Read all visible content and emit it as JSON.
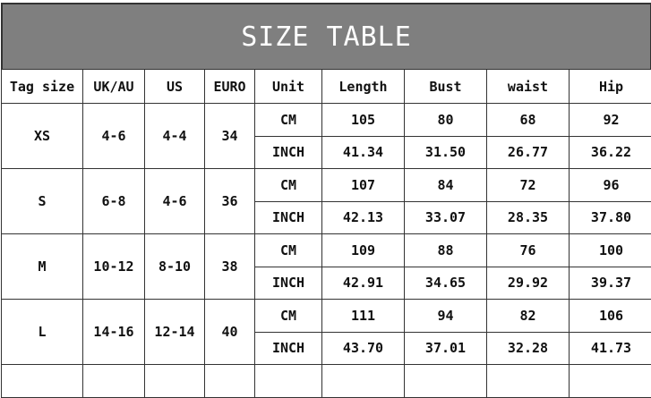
{
  "title": "SIZE TABLE",
  "headers": [
    "Tag size",
    "UK/AU",
    "US",
    "EURO",
    "Unit",
    "Length",
    "Bust",
    "waist",
    "Hip"
  ],
  "rows": [
    {
      "tag": "XS",
      "uk": "4-6",
      "us": "4-4",
      "euro": "34",
      "cm": {
        "unit": "CM",
        "length": "105",
        "bust": "80",
        "waist": "68",
        "hip": "92"
      },
      "inch": {
        "unit": "INCH",
        "length": "41.34",
        "bust": "31.50",
        "waist": "26.77",
        "hip": "36.22"
      }
    },
    {
      "tag": "S",
      "uk": "6-8",
      "us": "4-6",
      "euro": "36",
      "cm": {
        "unit": "CM",
        "length": "107",
        "bust": "84",
        "waist": "72",
        "hip": "96"
      },
      "inch": {
        "unit": "INCH",
        "length": "42.13",
        "bust": "33.07",
        "waist": "28.35",
        "hip": "37.80"
      }
    },
    {
      "tag": "M",
      "uk": "10-12",
      "us": "8-10",
      "euro": "38",
      "cm": {
        "unit": "CM",
        "length": "109",
        "bust": "88",
        "waist": "76",
        "hip": "100"
      },
      "inch": {
        "unit": "INCH",
        "length": "42.91",
        "bust": "34.65",
        "waist": "29.92",
        "hip": "39.37"
      }
    },
    {
      "tag": "L",
      "uk": "14-16",
      "us": "12-14",
      "euro": "40",
      "cm": {
        "unit": "CM",
        "length": "111",
        "bust": "94",
        "waist": "82",
        "hip": "106"
      },
      "inch": {
        "unit": "INCH",
        "length": "43.70",
        "bust": "37.01",
        "waist": "32.28",
        "hip": "41.73"
      }
    }
  ]
}
